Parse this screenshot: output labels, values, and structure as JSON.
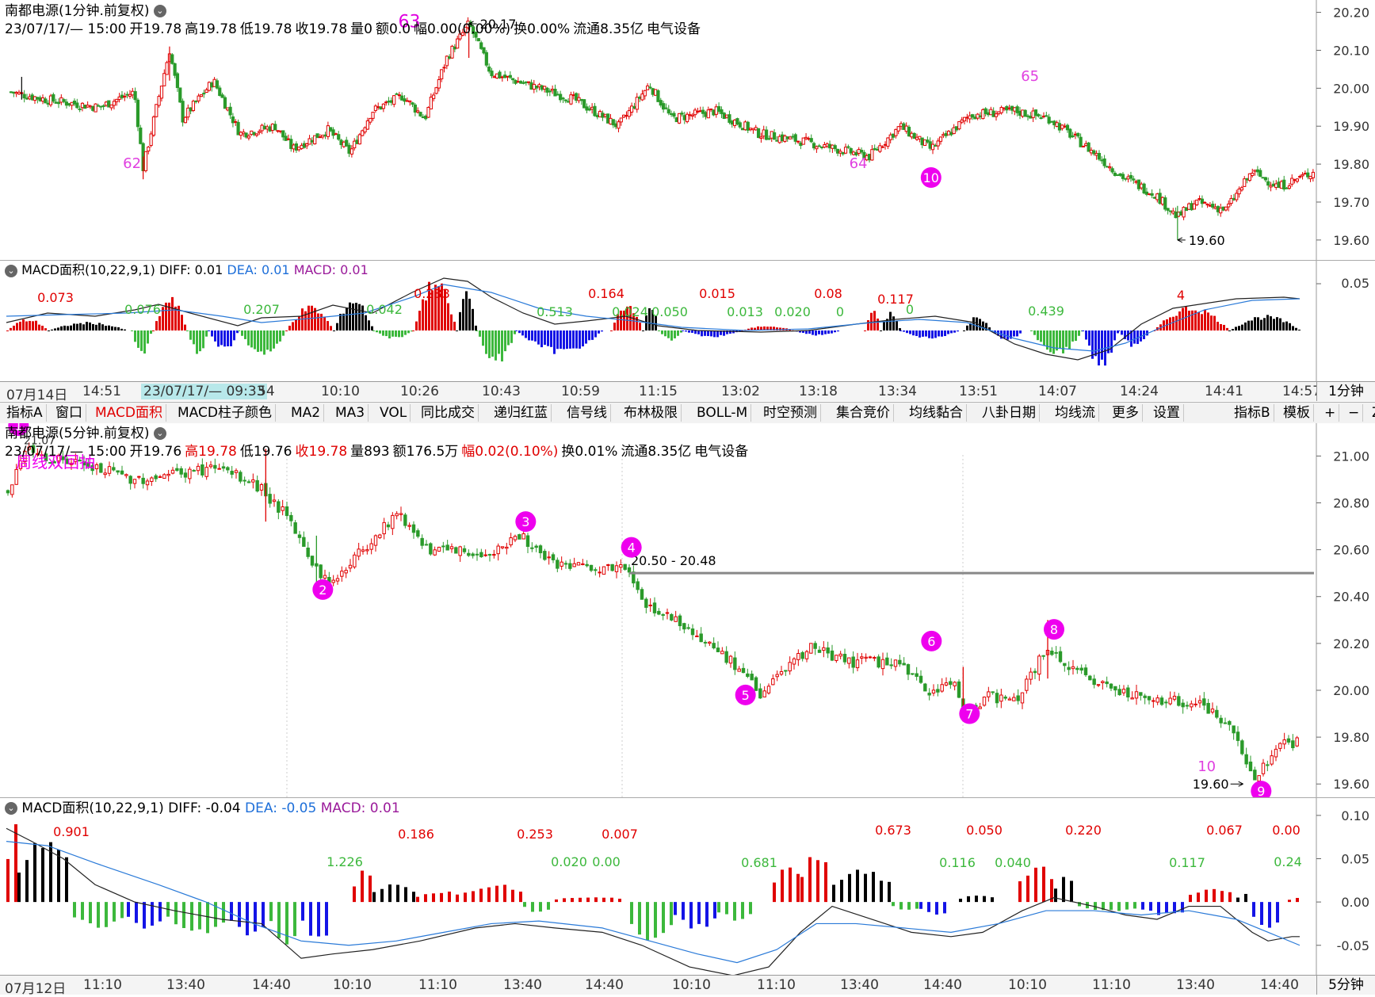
{
  "top_panel": {
    "title": "南都电源(1分钟.前复权)",
    "info": [
      {
        "text": "23/07/17/— 15:00",
        "color": "#000"
      },
      {
        "text": "开19.78",
        "color": "#000"
      },
      {
        "text": "高19.78",
        "color": "#000"
      },
      {
        "text": "低19.78",
        "color": "#000"
      },
      {
        "text": "收19.78",
        "color": "#000"
      },
      {
        "text": "量0",
        "color": "#000"
      },
      {
        "text": "额0.0",
        "color": "#000"
      },
      {
        "text": "幅0.00(0.00%)",
        "color": "#000"
      },
      {
        "text": "换0.00%",
        "color": "#000"
      },
      {
        "text": "流通8.35亿",
        "color": "#000"
      },
      {
        "text": "电气设备",
        "color": "#000"
      }
    ],
    "price_ticks": [
      "20.20",
      "20.10",
      "20.00",
      "19.90",
      "19.80",
      "19.70",
      "19.60"
    ],
    "annotations": [
      {
        "text": "62",
        "price": 19.79,
        "idx": 150
      },
      {
        "text": "63",
        "price": 20.16,
        "idx": 465
      },
      {
        "text": "64",
        "price": 19.79,
        "idx": 975
      },
      {
        "text": "65",
        "price": 20.02,
        "idx": 1170
      }
    ],
    "max_label": "20.17",
    "min_label": "19.60",
    "circle_marker": "10"
  },
  "top_macd": {
    "title": "MACD面积(10,22,9,1)",
    "diff_label": "DIFF: 0.01",
    "dea_label": "DEA: 0.01",
    "macd_label": "MACD: 0.01",
    "tick": "0.05",
    "area_labels": [
      {
        "text": "0.073",
        "color": "#e00000",
        "x": 70,
        "y": 380
      },
      {
        "text": "0.076",
        "color": "#3cb83c",
        "x": 180,
        "y": 395
      },
      {
        "text": "0.207",
        "color": "#3cb83c",
        "x": 330,
        "y": 395
      },
      {
        "text": "0.042",
        "color": "#3cb83c",
        "x": 485,
        "y": 395
      },
      {
        "text": "0.283",
        "color": "#e00000",
        "x": 545,
        "y": 375
      },
      {
        "text": "0.513",
        "color": "#3cb83c",
        "x": 700,
        "y": 398
      },
      {
        "text": "0.164",
        "color": "#e00000",
        "x": 765,
        "y": 375
      },
      {
        "text": "0.024",
        "color": "#3cb83c",
        "x": 795,
        "y": 398
      },
      {
        "text": "0.050",
        "color": "#3cb83c",
        "x": 845,
        "y": 398
      },
      {
        "text": "0.015",
        "color": "#e00000",
        "x": 905,
        "y": 375
      },
      {
        "text": "0.013",
        "color": "#3cb83c",
        "x": 940,
        "y": 398
      },
      {
        "text": "0.020",
        "color": "#3cb83c",
        "x": 1000,
        "y": 398
      },
      {
        "text": "0.08",
        "color": "#e00000",
        "x": 1045,
        "y": 375
      },
      {
        "text": "0",
        "color": "#3cb83c",
        "x": 1060,
        "y": 398
      },
      {
        "text": "0.117",
        "color": "#e00000",
        "x": 1130,
        "y": 382
      },
      {
        "text": "0",
        "color": "#3cb83c",
        "x": 1148,
        "y": 395
      },
      {
        "text": "0.439",
        "color": "#3cb83c",
        "x": 1320,
        "y": 397
      },
      {
        "text": "4",
        "color": "#e00000",
        "x": 1490,
        "y": 377
      }
    ]
  },
  "top_time_axis": [
    "07月14日",
    "14:51",
    "23/07/17/— 09:33",
    "54",
    "10:10",
    "10:26",
    "10:43",
    "10:59",
    "11:15",
    "13:02",
    "13:18",
    "13:34",
    "13:51",
    "14:07",
    "14:24",
    "14:41",
    "14:57"
  ],
  "top_period": "1分钟",
  "toolbar": [
    "指标A",
    "窗口",
    "MACD面积",
    "MACD柱子颜色",
    "MA2",
    "MA3",
    "VOL",
    "同比成交",
    "递归红蓝",
    "信号线",
    "布林极限",
    "BOLL-M",
    "时空预测",
    "集合竞价",
    "均线黏合",
    "八卦日期",
    "均线流",
    "更多",
    "设置"
  ],
  "toolbar_right": [
    "指标B",
    "模板",
    "+",
    "−",
    "Z"
  ],
  "bottom_panel": {
    "title": "南都电源(5分钟.前复权)",
    "info": [
      {
        "text": "23/07/17/— 15:00",
        "color": "#000"
      },
      {
        "text": "开19.76",
        "color": "#000"
      },
      {
        "text": "高19.78",
        "color": "#e00000"
      },
      {
        "text": "低19.76",
        "color": "#000"
      },
      {
        "text": "收19.78",
        "color": "#e00000"
      },
      {
        "text": "量893",
        "color": "#000"
      },
      {
        "text": "额176.5万",
        "color": "#000"
      },
      {
        "text": "幅0.02(0.10%)",
        "color": "#e00000"
      },
      {
        "text": "换0.01%",
        "color": "#000"
      },
      {
        "text": "流通8.35亿",
        "color": "#000"
      },
      {
        "text": "电气设备",
        "color": "#000"
      }
    ],
    "price_ticks": [
      "21.00",
      "20.80",
      "20.60",
      "20.40",
      "20.20",
      "20.00",
      "19.80",
      "19.60"
    ],
    "overlay_text": "周线双回抽",
    "overlay_value": "21.07",
    "level_line_label": "20.50 - 20.48",
    "min_label": "19.60",
    "min_index_label": "10",
    "numbered_markers": [
      {
        "n": "1",
        "price": 21.13,
        "idx": 1
      },
      {
        "n": "2",
        "price": 20.43,
        "idx": 73
      },
      {
        "n": "3",
        "price": 20.72,
        "idx": 121
      },
      {
        "n": "4",
        "price": 20.61,
        "idx": 146
      },
      {
        "n": "5",
        "price": 19.98,
        "idx": 173
      },
      {
        "n": "6",
        "price": 20.21,
        "idx": 217
      },
      {
        "n": "7",
        "price": 19.9,
        "idx": 226
      },
      {
        "n": "8",
        "price": 20.26,
        "idx": 246
      },
      {
        "n": "9",
        "price": 19.57,
        "idx": 295
      }
    ]
  },
  "bottom_macd": {
    "title": "MACD面积(10,22,9,1)",
    "diff_label": "DIFF: -0.04",
    "dea_label": "DEA: -0.05",
    "macd_label": "MACD: 0.01",
    "ticks": [
      "0.10",
      "0.05",
      "0.00",
      "-0.05"
    ],
    "area_labels": [
      {
        "text": "0.901",
        "color": "#e00000",
        "x": 90,
        "y": 1054
      },
      {
        "text": "1.226",
        "color": "#3cb83c",
        "x": 435,
        "y": 1092
      },
      {
        "text": "0.186",
        "color": "#e00000",
        "x": 525,
        "y": 1057
      },
      {
        "text": "0.253",
        "color": "#e00000",
        "x": 675,
        "y": 1057
      },
      {
        "text": "0.020",
        "color": "#3cb83c",
        "x": 718,
        "y": 1092
      },
      {
        "text": "0.00",
        "color": "#3cb83c",
        "x": 765,
        "y": 1092
      },
      {
        "text": "0.007",
        "color": "#e00000",
        "x": 782,
        "y": 1057
      },
      {
        "text": "0.681",
        "color": "#3cb83c",
        "x": 958,
        "y": 1093
      },
      {
        "text": "0.673",
        "color": "#e00000",
        "x": 1127,
        "y": 1052
      },
      {
        "text": "0.116",
        "color": "#3cb83c",
        "x": 1208,
        "y": 1093
      },
      {
        "text": "0.050",
        "color": "#e00000",
        "x": 1242,
        "y": 1052
      },
      {
        "text": "0.040",
        "color": "#3cb83c",
        "x": 1278,
        "y": 1093
      },
      {
        "text": "0.220",
        "color": "#e00000",
        "x": 1367,
        "y": 1052
      },
      {
        "text": "0.117",
        "color": "#3cb83c",
        "x": 1498,
        "y": 1093
      },
      {
        "text": "0.067",
        "color": "#e00000",
        "x": 1545,
        "y": 1052
      },
      {
        "text": "0.00",
        "color": "#e00000",
        "x": 1623,
        "y": 1052
      },
      {
        "text": "0.24",
        "color": "#3cb83c",
        "x": 1625,
        "y": 1092
      }
    ]
  },
  "bottom_time_axis": [
    "07月12日",
    "11:10",
    "13:40",
    "14:40",
    "10:10",
    "11:10",
    "13:40",
    "14:40",
    "10:10",
    "11:10",
    "13:40",
    "14:40",
    "10:10",
    "11:10",
    "13:40",
    "14:40"
  ],
  "bottom_period": "5分钟",
  "chart_data": [
    {
      "type": "candlestick",
      "title": "南都电源(1分钟.前复权)",
      "ylim": [
        19.56,
        20.22
      ],
      "y_ticks": [
        20.2,
        20.1,
        20.0,
        19.9,
        19.8,
        19.7,
        19.6
      ],
      "keypoints_close": [
        [
          0,
          19.99
        ],
        [
          40,
          19.97
        ],
        [
          100,
          19.95
        ],
        [
          140,
          19.99
        ],
        [
          150,
          19.79
        ],
        [
          170,
          20.0
        ],
        [
          180,
          20.1
        ],
        [
          195,
          19.92
        ],
        [
          230,
          20.02
        ],
        [
          260,
          19.88
        ],
        [
          300,
          19.9
        ],
        [
          320,
          19.84
        ],
        [
          360,
          19.89
        ],
        [
          385,
          19.83
        ],
        [
          410,
          19.94
        ],
        [
          445,
          19.98
        ],
        [
          470,
          19.92
        ],
        [
          495,
          20.08
        ],
        [
          520,
          20.17
        ],
        [
          545,
          20.04
        ],
        [
          600,
          20.0
        ],
        [
          640,
          19.97
        ],
        [
          690,
          19.9
        ],
        [
          725,
          20.01
        ],
        [
          750,
          19.92
        ],
        [
          800,
          19.94
        ],
        [
          850,
          19.88
        ],
        [
          900,
          19.86
        ],
        [
          975,
          19.82
        ],
        [
          1010,
          19.9
        ],
        [
          1045,
          19.84
        ],
        [
          1090,
          19.93
        ],
        [
          1140,
          19.94
        ],
        [
          1180,
          19.92
        ],
        [
          1230,
          19.83
        ],
        [
          1260,
          19.77
        ],
        [
          1300,
          19.72
        ],
        [
          1325,
          19.66
        ],
        [
          1345,
          19.7
        ],
        [
          1380,
          19.68
        ],
        [
          1410,
          19.78
        ],
        [
          1440,
          19.74
        ],
        [
          1480,
          19.78
        ]
      ],
      "max_label": 20.17,
      "min_label": 19.6
    },
    {
      "type": "candlestick",
      "title": "南都电源(5分钟.前复权)",
      "ylim": [
        19.55,
        21.14
      ],
      "y_ticks": [
        21.0,
        20.8,
        20.6,
        20.4,
        20.2,
        20.0,
        19.8,
        19.6
      ],
      "keypoints_close": [
        [
          0,
          20.85
        ],
        [
          4,
          21.02
        ],
        [
          20,
          20.95
        ],
        [
          30,
          20.9
        ],
        [
          50,
          20.95
        ],
        [
          60,
          20.86
        ],
        [
          65,
          20.76
        ],
        [
          72,
          20.55
        ],
        [
          76,
          20.45
        ],
        [
          85,
          20.62
        ],
        [
          92,
          20.76
        ],
        [
          100,
          20.6
        ],
        [
          112,
          20.58
        ],
        [
          122,
          20.66
        ],
        [
          127,
          20.55
        ],
        [
          140,
          20.51
        ],
        [
          146,
          20.53
        ],
        [
          150,
          20.38
        ],
        [
          160,
          20.28
        ],
        [
          170,
          20.14
        ],
        [
          178,
          19.99
        ],
        [
          190,
          20.18
        ],
        [
          200,
          20.12
        ],
        [
          210,
          20.12
        ],
        [
          217,
          20.0
        ],
        [
          224,
          20.03
        ],
        [
          226,
          19.9
        ],
        [
          232,
          19.98
        ],
        [
          238,
          19.95
        ],
        [
          246,
          20.18
        ],
        [
          252,
          20.08
        ],
        [
          262,
          20.01
        ],
        [
          272,
          19.95
        ],
        [
          282,
          19.95
        ],
        [
          290,
          19.82
        ],
        [
          295,
          19.62
        ],
        [
          300,
          19.76
        ],
        [
          305,
          19.78
        ]
      ],
      "level_line": 20.5,
      "min_label": 19.6
    },
    {
      "type": "bar",
      "title": "MACD面积(10,22,9,1)",
      "series": [
        {
          "name": "DIFF",
          "last": 0.01
        },
        {
          "name": "DEA",
          "last": 0.01
        },
        {
          "name": "MACD",
          "last": 0.01
        }
      ]
    },
    {
      "type": "bar",
      "title": "MACD面积(10,22,9,1)",
      "ylim": [
        -0.085,
        0.12
      ],
      "y_ticks": [
        0.1,
        0.05,
        0.0,
        -0.05
      ],
      "series": [
        {
          "name": "DIFF",
          "last": -0.04
        },
        {
          "name": "DEA",
          "last": -0.05
        },
        {
          "name": "MACD",
          "last": 0.01
        }
      ]
    }
  ]
}
